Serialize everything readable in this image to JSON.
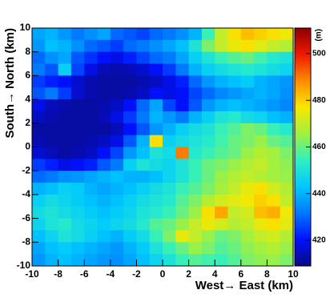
{
  "chart_data": {
    "type": "heatmap",
    "xlabel": "West→ East (km)",
    "ylabel": "South→ North (km)",
    "zlabel": "(m)",
    "xlim": [
      -10,
      10
    ],
    "ylim": [
      -10,
      10
    ],
    "zlim": [
      409,
      511
    ],
    "xticks": [
      -10,
      -8,
      -6,
      -4,
      -2,
      0,
      2,
      4,
      6,
      8,
      10
    ],
    "yticks": [
      -10,
      -8,
      -6,
      -4,
      -2,
      0,
      2,
      4,
      6,
      8,
      10
    ],
    "zticks": [
      420,
      440,
      460,
      480,
      500
    ],
    "colorscale": [
      "#0a0a80",
      "#0010ff",
      "#0078ff",
      "#00c8ff",
      "#30f0c0",
      "#a0f040",
      "#f8e800",
      "#ff8c00",
      "#f01800",
      "#8b0000"
    ],
    "x": [
      -9.5,
      -8.5,
      -7.5,
      -6.5,
      -5.5,
      -4.5,
      -3.5,
      -2.5,
      -1.5,
      -0.5,
      0.5,
      1.5,
      2.5,
      3.5,
      4.5,
      5.5,
      6.5,
      7.5,
      8.5,
      9.5
    ],
    "y": [
      9.5,
      8.5,
      7.5,
      6.5,
      5.5,
      4.5,
      3.5,
      2.5,
      1.5,
      0.5,
      -0.5,
      -1.5,
      -2.5,
      -3.5,
      -4.5,
      -5.5,
      -6.5,
      -7.5,
      -8.5,
      -9.5
    ],
    "values": [
      [
        438,
        440,
        436,
        432,
        435,
        438,
        430,
        428,
        426,
        430,
        432,
        435,
        440,
        455,
        470,
        478,
        482,
        480,
        478,
        476
      ],
      [
        436,
        442,
        440,
        435,
        430,
        428,
        425,
        430,
        432,
        435,
        438,
        442,
        450,
        462,
        470,
        475,
        478,
        474,
        470,
        468
      ],
      [
        430,
        435,
        438,
        428,
        424,
        420,
        418,
        422,
        426,
        430,
        432,
        438,
        445,
        450,
        455,
        458,
        460,
        456,
        452,
        450
      ],
      [
        432,
        428,
        445,
        426,
        418,
        414,
        413,
        414,
        416,
        420,
        425,
        432,
        440,
        445,
        448,
        450,
        452,
        450,
        448,
        446
      ],
      [
        425,
        422,
        420,
        416,
        413,
        412,
        412,
        412,
        413,
        415,
        418,
        422,
        430,
        436,
        440,
        442,
        444,
        440,
        438,
        436
      ],
      [
        428,
        432,
        425,
        416,
        413,
        412,
        412,
        413,
        415,
        420,
        418,
        420,
        426,
        430,
        434,
        436,
        438,
        440,
        438,
        435
      ],
      [
        418,
        414,
        413,
        412,
        412,
        413,
        415,
        420,
        430,
        438,
        426,
        420,
        428,
        436,
        440,
        442,
        440,
        438,
        436,
        434
      ],
      [
        415,
        413,
        412,
        412,
        412,
        414,
        418,
        425,
        432,
        440,
        436,
        432,
        440,
        445,
        450,
        452,
        448,
        446,
        442,
        440
      ],
      [
        412,
        412,
        412,
        412,
        412,
        412,
        414,
        420,
        428,
        436,
        440,
        445,
        448,
        450,
        455,
        458,
        462,
        460,
        455,
        452
      ],
      [
        413,
        412,
        412,
        412,
        413,
        415,
        418,
        428,
        440,
        478,
        445,
        448,
        450,
        452,
        456,
        460,
        462,
        465,
        460,
        458
      ],
      [
        416,
        414,
        412,
        413,
        415,
        420,
        426,
        436,
        442,
        450,
        448,
        490,
        452,
        455,
        458,
        460,
        465,
        468,
        466,
        462
      ],
      [
        425,
        422,
        418,
        420,
        422,
        428,
        432,
        445,
        450,
        448,
        446,
        450,
        455,
        460,
        462,
        465,
        468,
        470,
        466,
        464
      ],
      [
        430,
        432,
        435,
        436,
        438,
        440,
        442,
        440,
        440,
        442,
        446,
        450,
        455,
        460,
        465,
        468,
        470,
        468,
        466,
        465
      ],
      [
        440,
        442,
        445,
        444,
        440,
        438,
        440,
        442,
        445,
        448,
        450,
        455,
        458,
        462,
        466,
        470,
        475,
        478,
        472,
        468
      ],
      [
        445,
        448,
        446,
        444,
        442,
        440,
        442,
        445,
        448,
        450,
        452,
        458,
        462,
        468,
        472,
        474,
        476,
        480,
        478,
        470
      ],
      [
        448,
        450,
        448,
        446,
        444,
        442,
        444,
        446,
        450,
        452,
        455,
        460,
        465,
        478,
        485,
        470,
        472,
        482,
        484,
        476
      ],
      [
        446,
        450,
        452,
        448,
        446,
        444,
        446,
        448,
        452,
        458,
        460,
        465,
        470,
        475,
        472,
        468,
        470,
        475,
        478,
        474
      ],
      [
        442,
        446,
        450,
        448,
        445,
        442,
        440,
        444,
        448,
        455,
        462,
        475,
        470,
        465,
        460,
        462,
        466,
        470,
        472,
        468
      ],
      [
        438,
        442,
        444,
        442,
        440,
        438,
        436,
        440,
        444,
        450,
        455,
        460,
        465,
        462,
        458,
        460,
        464,
        466,
        468,
        465
      ],
      [
        436,
        440,
        442,
        440,
        438,
        436,
        435,
        438,
        442,
        446,
        450,
        455,
        458,
        456,
        455,
        458,
        462,
        464,
        465,
        462
      ]
    ]
  }
}
